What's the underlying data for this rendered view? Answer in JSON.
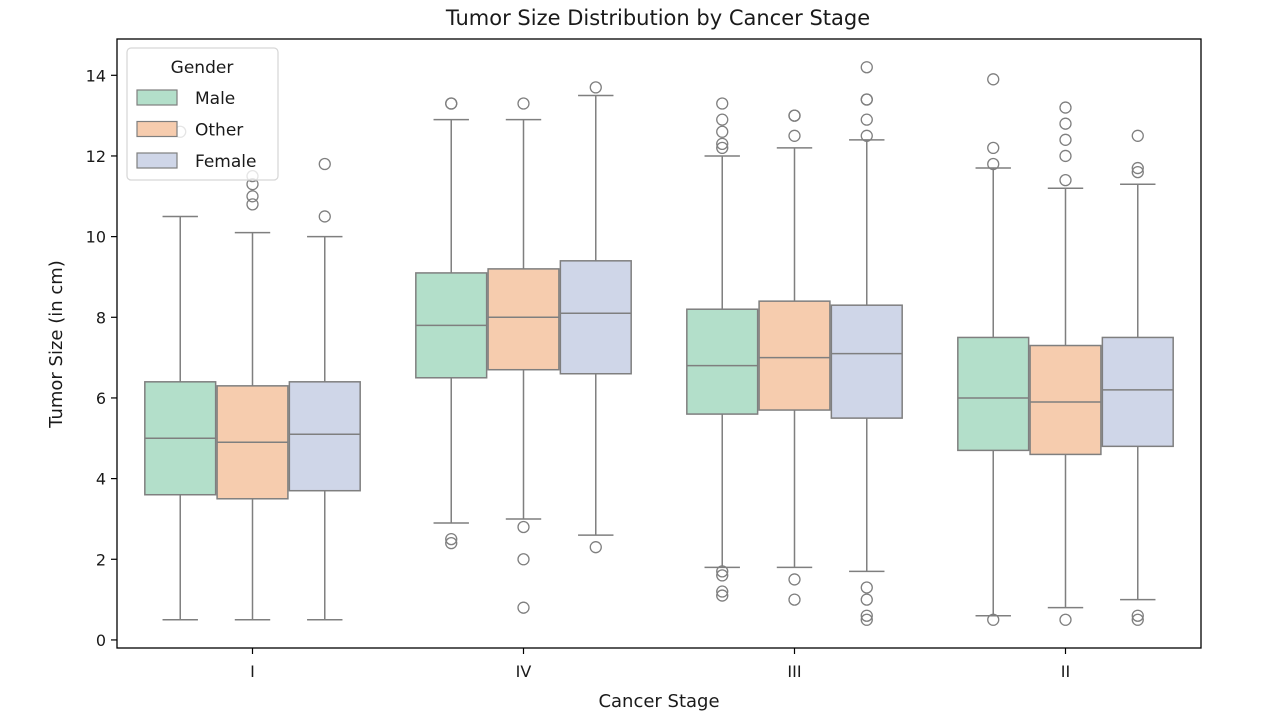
{
  "chart_data": {
    "type": "box",
    "title": "Tumor Size Distribution by Cancer Stage",
    "xlabel": "Cancer Stage",
    "ylabel": "Tumor Size (in cm)",
    "categories": [
      "I",
      "IV",
      "III",
      "II"
    ],
    "ylim": [
      -0.2,
      14.9
    ],
    "yticks": [
      0,
      2,
      4,
      6,
      8,
      10,
      12,
      14
    ],
    "grid": false,
    "legend": {
      "title": "Gender",
      "placement": "top-left"
    },
    "series": [
      {
        "name": "Male",
        "color": "#b3dfca",
        "boxes": [
          {
            "whislo": 0.5,
            "q1": 3.6,
            "med": 5.0,
            "q3": 6.4,
            "whishi": 10.5,
            "fliers": [
              12.6
            ]
          },
          {
            "whislo": 2.9,
            "q1": 6.5,
            "med": 7.8,
            "q3": 9.1,
            "whishi": 12.9,
            "fliers": [
              2.4,
              2.5,
              13.3,
              13.3
            ]
          },
          {
            "whislo": 1.8,
            "q1": 5.6,
            "med": 6.8,
            "q3": 8.2,
            "whishi": 12.0,
            "fliers": [
              1.1,
              1.2,
              1.6,
              1.7,
              12.2,
              12.3,
              12.6,
              12.9,
              13.3
            ]
          },
          {
            "whislo": 0.6,
            "q1": 4.7,
            "med": 6.0,
            "q3": 7.5,
            "whishi": 11.7,
            "fliers": [
              0.5,
              11.8,
              12.2,
              13.9
            ]
          }
        ]
      },
      {
        "name": "Other",
        "color": "#f6ccae",
        "boxes": [
          {
            "whislo": 0.5,
            "q1": 3.5,
            "med": 4.9,
            "q3": 6.3,
            "whishi": 10.1,
            "fliers": [
              10.8,
              11.0,
              11.3,
              11.5
            ]
          },
          {
            "whislo": 3.0,
            "q1": 6.7,
            "med": 8.0,
            "q3": 9.2,
            "whishi": 12.9,
            "fliers": [
              0.8,
              2.0,
              2.8,
              13.3
            ]
          },
          {
            "whislo": 1.8,
            "q1": 5.7,
            "med": 7.0,
            "q3": 8.4,
            "whishi": 12.2,
            "fliers": [
              1.0,
              1.5,
              12.5,
              13.0,
              13.0
            ]
          },
          {
            "whislo": 0.8,
            "q1": 4.6,
            "med": 5.9,
            "q3": 7.3,
            "whishi": 11.2,
            "fliers": [
              0.5,
              11.4,
              12.0,
              12.4,
              12.8,
              13.2
            ]
          }
        ]
      },
      {
        "name": "Female",
        "color": "#cfd6e8",
        "boxes": [
          {
            "whislo": 0.5,
            "q1": 3.7,
            "med": 5.1,
            "q3": 6.4,
            "whishi": 10.0,
            "fliers": [
              10.5,
              11.8
            ]
          },
          {
            "whislo": 2.6,
            "q1": 6.6,
            "med": 8.1,
            "q3": 9.4,
            "whishi": 13.5,
            "fliers": [
              2.3,
              13.7
            ]
          },
          {
            "whislo": 1.7,
            "q1": 5.5,
            "med": 7.1,
            "q3": 8.3,
            "whishi": 12.4,
            "fliers": [
              0.5,
              0.6,
              1.0,
              1.3,
              12.5,
              12.9,
              13.4,
              13.4,
              14.2
            ]
          },
          {
            "whislo": 1.0,
            "q1": 4.8,
            "med": 6.2,
            "q3": 7.5,
            "whishi": 11.3,
            "fliers": [
              0.5,
              0.6,
              11.6,
              11.7,
              12.5
            ]
          }
        ]
      }
    ]
  }
}
